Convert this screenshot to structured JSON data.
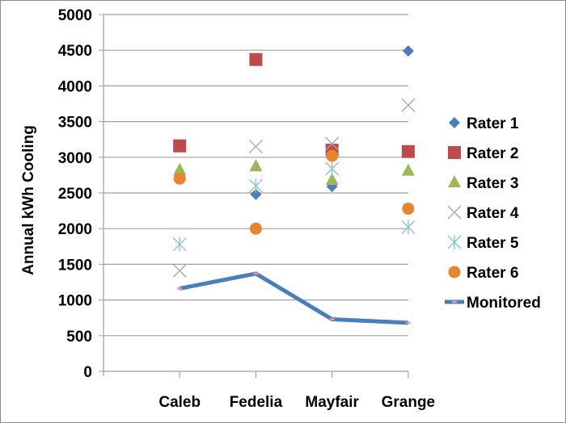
{
  "chart_data": {
    "type": "scatter",
    "title": "",
    "xlabel": "",
    "ylabel": "Annual kWh Cooling",
    "ylim": [
      0,
      5000
    ],
    "yticks": [
      0,
      500,
      1000,
      1500,
      2000,
      2500,
      3000,
      3500,
      4000,
      4500,
      5000
    ],
    "grid": true,
    "legend_position": "right",
    "categories": [
      "Caleb",
      "Fedelia",
      "Mayfair",
      "Grange"
    ],
    "series": [
      {
        "name": "Rater 1",
        "marker": "diamond",
        "color": "#4a7ebb",
        "values": [
          2750,
          2480,
          2590,
          4490
        ]
      },
      {
        "name": "Rater 2",
        "marker": "square",
        "color": "#be4b48",
        "values": [
          3160,
          4370,
          3100,
          3080
        ]
      },
      {
        "name": "Rater 3",
        "marker": "triangle",
        "color": "#98b954",
        "values": [
          2820,
          2870,
          2680,
          2810
        ]
      },
      {
        "name": "Rater 4",
        "marker": "x",
        "color": "#a6a6a6",
        "values": [
          1410,
          3150,
          3190,
          3730
        ]
      },
      {
        "name": "Rater 5",
        "marker": "star",
        "color": "#7fc3cc",
        "values": [
          1780,
          2600,
          2840,
          2020
        ]
      },
      {
        "name": "Rater 6",
        "marker": "circle",
        "color": "#e8832e",
        "values": [
          2700,
          2000,
          3020,
          2280
        ]
      },
      {
        "name": "Monitored",
        "marker": "line",
        "color": "#4a7ebb",
        "accent": "#e89a9a",
        "values": [
          1160,
          1370,
          730,
          680
        ]
      }
    ]
  }
}
